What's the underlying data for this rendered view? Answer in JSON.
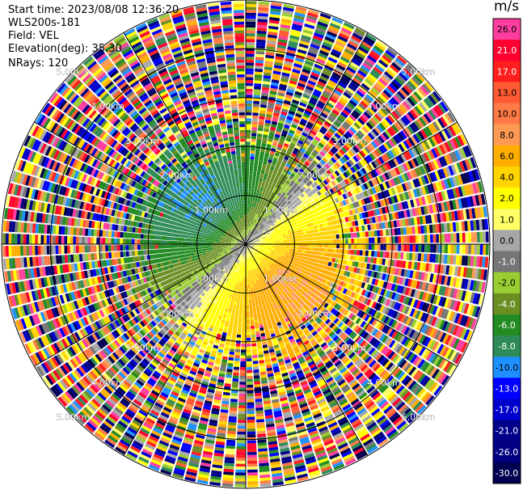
{
  "header": {
    "start_time": "Start time: 2023/08/08 12:36:20",
    "site": "WLS200s-181",
    "field": "Field: VEL",
    "elevation": "Elevation(deg): 35.30",
    "nrays": "NRays: 120"
  },
  "colorbar": {
    "unit": "m/s",
    "levels": [
      {
        "label": "26.0",
        "color": "#ff3ca0"
      },
      {
        "label": "21.0",
        "color": "#ff0030"
      },
      {
        "label": "17.0",
        "color": "#ff1e1e"
      },
      {
        "label": "13.0",
        "color": "#ff5a32"
      },
      {
        "label": "10.0",
        "color": "#ff7a46"
      },
      {
        "label": "8.0",
        "color": "#ff9a55"
      },
      {
        "label": "6.0",
        "color": "#ffae00"
      },
      {
        "label": "4.0",
        "color": "#ffd400"
      },
      {
        "label": "2.0",
        "color": "#ffff00"
      },
      {
        "label": "1.0",
        "color": "#ffff66"
      },
      {
        "label": "0.0",
        "color": "#a8a8a8"
      },
      {
        "label": "-1.0",
        "color": "#767676"
      },
      {
        "label": "-2.0",
        "color": "#9acd32"
      },
      {
        "label": "-4.0",
        "color": "#6b8e23"
      },
      {
        "label": "-6.0",
        "color": "#228b22"
      },
      {
        "label": "-8.0",
        "color": "#2e8b57"
      },
      {
        "label": "-10.0",
        "color": "#1e90ff"
      },
      {
        "label": "-13.0",
        "color": "#0000ff"
      },
      {
        "label": "-17.0",
        "color": "#0000cd"
      },
      {
        "label": "-21.0",
        "color": "#00008b"
      },
      {
        "label": "-26.0",
        "color": "#000080"
      },
      {
        "label": "-30.0",
        "color": "#000050"
      }
    ]
  },
  "chart_data": {
    "type": "heatmap",
    "projection": "polar-ppi",
    "field": "VEL",
    "units": "m/s",
    "nrays": 120,
    "elevation_deg": 35.3,
    "range_rings_km": [
      1.0,
      2.0,
      3.0,
      4.0,
      5.0
    ],
    "ring_labels": [
      "1.00km",
      "2.00km",
      "3.00km",
      "4.00km",
      "5.00km"
    ],
    "max_range_km": 5.0,
    "value_range": [
      -30.0,
      26.0
    ],
    "velocity_pattern": {
      "valid_data_range_km": 1.9,
      "approach_sector_center_deg": 315,
      "recede_sector_center_deg": 135,
      "peak_approach_mps": -8.0,
      "peak_recede_mps": 8.0
    },
    "noise_beyond_km": 2.5
  }
}
